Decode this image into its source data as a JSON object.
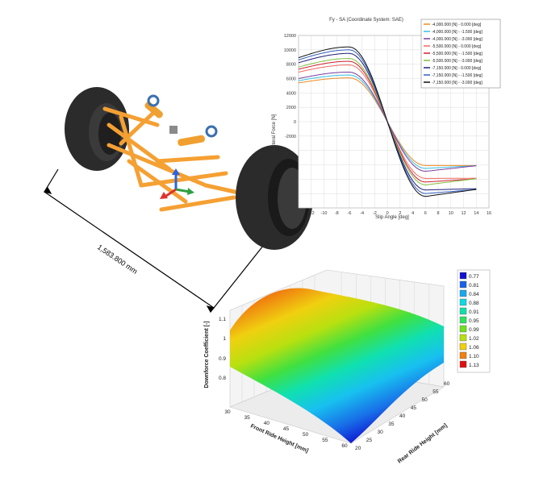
{
  "cad": {
    "dimension_label": "1,583.800 mm"
  },
  "colors": {
    "tire": "#2b2b2b",
    "frame": "#f5a033",
    "spring": "#f0a030",
    "axis_x": "#e0302a",
    "axis_y": "#2ea043",
    "axis_z": "#2a63e0"
  },
  "chart_data": [
    {
      "type": "line",
      "title": "Fy - SA (Coordinate System: SAE)",
      "xlabel": "Slip Angle [deg]",
      "ylabel": "Lateral Force [N]",
      "xlim": [
        -14,
        16
      ],
      "ylim": [
        -12000,
        12000
      ],
      "x_ticks": [
        "-12",
        "-10",
        "-8",
        "-6",
        "-4",
        "-2",
        "0",
        "2",
        "4",
        "6",
        "8",
        "10",
        "12",
        "14",
        "16"
      ],
      "y_ticks": [
        "12000",
        "10000",
        "8000",
        "6000",
        "4000",
        "2000",
        "0",
        "-2000"
      ],
      "grid": true,
      "legend_position": "top-right",
      "series": [
        {
          "name": "-4,000.000 [N] - 0.000 [deg]",
          "color": "#f08a20",
          "peak": 6100,
          "tail": 6100,
          "plateau": 5400
        },
        {
          "name": "-4,000.000 [N] - -1.500 [deg]",
          "color": "#35c0e0",
          "peak": 6500,
          "tail": 5400,
          "plateau": 5700
        },
        {
          "name": "-4,000.000 [N] - -3.000 [deg]",
          "color": "#7a3ea0",
          "peak": 6900,
          "tail": 4700,
          "plateau": 6000
        },
        {
          "name": "-5,500.000 [N] - 0.000 [deg]",
          "color": "#f06a60",
          "peak": 7900,
          "tail": 7800,
          "plateau": 6900
        },
        {
          "name": "-5,500.000 [N] - -1.500 [deg]",
          "color": "#d02030",
          "peak": 8400,
          "tail": 7100,
          "plateau": 7300
        },
        {
          "name": "-5,500.000 [N] - -3.000 [deg]",
          "color": "#80c040",
          "peak": 8800,
          "tail": 6300,
          "plateau": 7600
        },
        {
          "name": "-7,150.000 [N] - 0.000 [deg]",
          "color": "#20207a",
          "peak": 9500,
          "tail": 9000,
          "plateau": 8200
        },
        {
          "name": "-7,150.000 [N] - -1.500 [deg]",
          "color": "#3060c0",
          "peak": 10000,
          "tail": 8400,
          "plateau": 8600
        },
        {
          "name": "-7,150.000 [N] - -3.000 [deg]",
          "color": "#101010",
          "peak": 10400,
          "tail": 7600,
          "plateau": 8900
        }
      ]
    },
    {
      "type": "heatmap",
      "subtype": "3d-surface",
      "xlabel": "Front Ride Height [mm]",
      "ylabel": "Rear Ride Height [mm]",
      "zlabel": "Downforce Coefficient [-]",
      "x_ticks": [
        "30",
        "35",
        "40",
        "45",
        "50",
        "55",
        "60"
      ],
      "y_ticks": [
        "20",
        "25",
        "30",
        "35",
        "40",
        "45",
        "50",
        "55",
        "60"
      ],
      "z_ticks": [
        "1.1",
        "1",
        "0.9",
        "0.8"
      ],
      "legend_position": "right",
      "legend": [
        "0.77",
        "0.81",
        "0.84",
        "0.88",
        "0.91",
        "0.95",
        "0.99",
        "1.02",
        "1.06",
        "1.10",
        "1.13"
      ],
      "legend_colors": [
        "#1010d0",
        "#1860e8",
        "#18a8f0",
        "#10d8e0",
        "#10e0a8",
        "#30e060",
        "#70e020",
        "#b8e010",
        "#f0d010",
        "#f08010",
        "#e01010"
      ]
    }
  ]
}
